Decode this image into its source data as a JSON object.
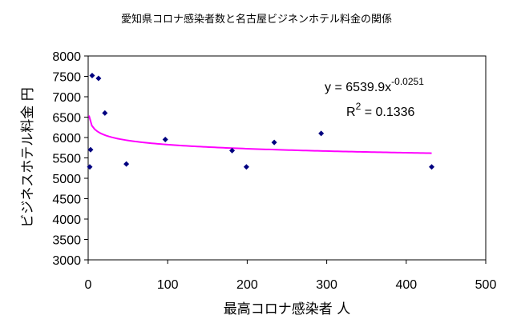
{
  "chart_data": {
    "type": "scatter",
    "title": "愛知県コロナ感染者数と名古屋ビジネンホテル料金の関係",
    "xlabel": "最高コロナ感染者 人",
    "ylabel": "ビジネスホテル料金 円",
    "xlim": [
      0,
      500
    ],
    "ylim": [
      3000,
      8000
    ],
    "x_ticks": [
      "0",
      "100",
      "200",
      "300",
      "400",
      "500"
    ],
    "y_ticks": [
      "3000",
      "3500",
      "4000",
      "4500",
      "5000",
      "5500",
      "6000",
      "6500",
      "7000",
      "7500",
      "8000"
    ],
    "grid": false,
    "points": [
      {
        "x": 2,
        "y": 5280
      },
      {
        "x": 3,
        "y": 5700
      },
      {
        "x": 5,
        "y": 7520
      },
      {
        "x": 13,
        "y": 7450
      },
      {
        "x": 21,
        "y": 6600
      },
      {
        "x": 48,
        "y": 5350
      },
      {
        "x": 97,
        "y": 5950
      },
      {
        "x": 181,
        "y": 5680
      },
      {
        "x": 199,
        "y": 5280
      },
      {
        "x": 234,
        "y": 5880
      },
      {
        "x": 293,
        "y": 6100
      },
      {
        "x": 432,
        "y": 5280
      }
    ],
    "trendline": {
      "type": "power",
      "a": 6539.9,
      "b": -0.0251,
      "x_range": [
        1,
        432
      ],
      "color": "#ff00ff"
    },
    "equation": {
      "y_text": "y = 6539.9x",
      "y_exp": "-0.0251",
      "r_text": "R",
      "r_exp": "2",
      "r_value": " = 0.1336"
    },
    "marker_color": "#000080"
  }
}
